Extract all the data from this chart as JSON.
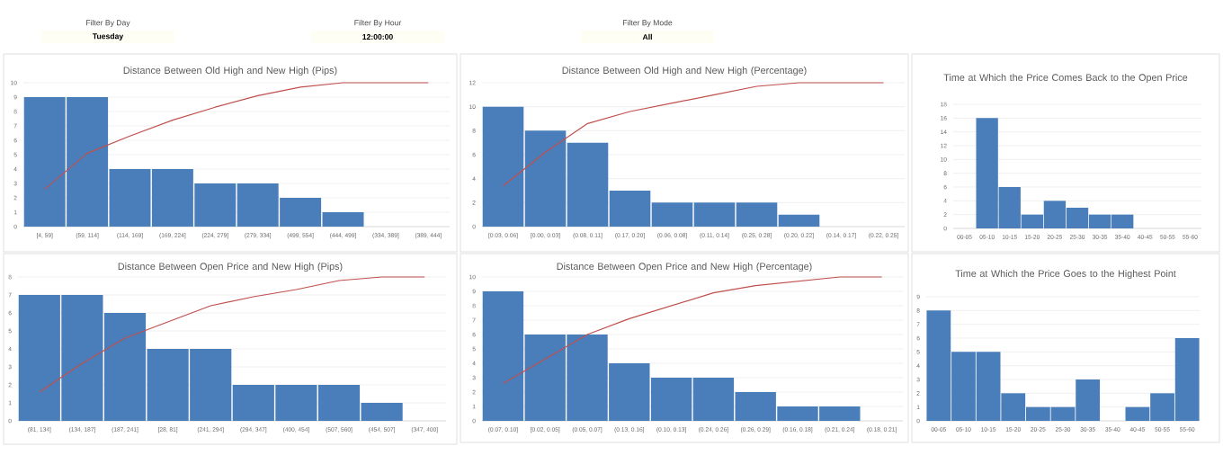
{
  "chart_data": [
    {
      "type": "other",
      "annotations": [
        "Filter By Day",
        "Tuesday",
        "Filter By Hour",
        "12:00:00",
        "Filter By Mode",
        "All"
      ]
    },
    {
      "type": "bar",
      "title": "Distance Between Old High and New High (Pips)",
      "categories": [
        "[4, 59]",
        "(59, 114]",
        "(114, 169]",
        "(169, 224]",
        "(224, 279]",
        "(279, 334]",
        "(499, 554]",
        "(444, 499]",
        "(334, 389]",
        "(389, 444]"
      ],
      "ylim": [
        0,
        10
      ],
      "yticks": [
        0,
        1,
        2,
        3,
        4,
        5,
        6,
        7,
        8,
        9,
        10
      ],
      "grid": "y",
      "series": [
        {
          "type": "bar",
          "color": "#4a7ebb",
          "values": [
            9,
            9,
            4,
            4,
            3,
            3,
            2,
            1,
            0,
            0
          ]
        },
        {
          "type": "line",
          "color": "#c0504d",
          "values": [
            2.6,
            5.1,
            6.3,
            7.4,
            8.3,
            9.1,
            9.7,
            10,
            10,
            10
          ]
        }
      ]
    },
    {
      "type": "bar",
      "title": "Distance Between Old High and New High (Percentage)",
      "categories": [
        "[0.03, 0.06]",
        "[0.00, 0.03]",
        "(0.08, 0.11]",
        "(0.17, 0.20]",
        "(0.06, 0.08]",
        "(0.11, 0.14]",
        "(0.25, 0.28]",
        "(0.20, 0.22]",
        "(0.14, 0.17]",
        "(0.22, 0.25]"
      ],
      "ylim": [
        0,
        12
      ],
      "yticks": [
        0,
        2,
        4,
        6,
        8,
        10,
        12
      ],
      "grid": "y",
      "series": [
        {
          "type": "bar",
          "color": "#4a7ebb",
          "values": [
            10,
            8,
            7,
            3,
            2,
            2,
            2,
            1,
            0,
            0
          ]
        },
        {
          "type": "line",
          "color": "#c0504d",
          "values": [
            3.4,
            6.2,
            8.6,
            9.6,
            10.3,
            11,
            11.7,
            12,
            12,
            12
          ]
        }
      ]
    },
    {
      "type": "bar",
      "title": "Time at Which the Price Comes Back to the Open Price",
      "categories": [
        "00-05",
        "05-10",
        "10-15",
        "15-20",
        "20-25",
        "25-30",
        "30-35",
        "35-40",
        "40-45",
        "50-55",
        "55-60"
      ],
      "ylim": [
        0,
        18
      ],
      "yticks": [
        0,
        2,
        4,
        6,
        8,
        10,
        12,
        14,
        16,
        18
      ],
      "grid": "y",
      "series": [
        {
          "type": "bar",
          "color": "#4a7ebb",
          "values": [
            0,
            16,
            6,
            2,
            4,
            3,
            2,
            2,
            0,
            0,
            0
          ]
        }
      ]
    },
    {
      "type": "bar",
      "title": "Distance Between Open Price and New High (Pips)",
      "categories": [
        "(81, 134]",
        "(134, 187]",
        "(187, 241]",
        "[28, 81]",
        "(241, 294]",
        "(294, 347]",
        "(400, 454]",
        "(507, 560]",
        "(454, 507]",
        "(347, 400]"
      ],
      "ylim": [
        0,
        8
      ],
      "yticks": [
        0,
        1,
        2,
        3,
        4,
        5,
        6,
        7,
        8
      ],
      "grid": "y",
      "series": [
        {
          "type": "bar",
          "color": "#4a7ebb",
          "values": [
            7,
            7,
            6,
            4,
            4,
            2,
            2,
            2,
            1,
            0
          ]
        },
        {
          "type": "line",
          "color": "#c0504d",
          "values": [
            1.6,
            3.2,
            4.6,
            5.5,
            6.4,
            6.9,
            7.3,
            7.8,
            8,
            8
          ]
        }
      ]
    },
    {
      "type": "bar",
      "title": "Distance Between Open Price and New High (Percentage)",
      "categories": [
        "(0.07, 0.10]",
        "[0.02, 0.05]",
        "(0.05, 0.07]",
        "(0.13, 0.16]",
        "(0.10, 0.13]",
        "(0.24, 0.26]",
        "(0.26, 0.29]",
        "(0.16, 0.18]",
        "(0.21, 0.24]",
        "(0.18, 0.21]"
      ],
      "ylim": [
        0,
        10
      ],
      "yticks": [
        0,
        1,
        2,
        3,
        4,
        5,
        6,
        7,
        8,
        9,
        10
      ],
      "grid": "y",
      "series": [
        {
          "type": "bar",
          "color": "#4a7ebb",
          "values": [
            9,
            6,
            6,
            4,
            3,
            3,
            2,
            1,
            1,
            0
          ]
        },
        {
          "type": "line",
          "color": "#c0504d",
          "values": [
            2.6,
            4.3,
            6,
            7.1,
            8,
            8.9,
            9.4,
            9.7,
            10,
            10
          ]
        }
      ]
    },
    {
      "type": "bar",
      "title": "Time at Which the Price Goes to the Highest Point",
      "categories": [
        "00-05",
        "05-10",
        "10-15",
        "15-20",
        "20-25",
        "25-30",
        "30-35",
        "35-40",
        "40-45",
        "50-55",
        "55-60"
      ],
      "ylim": [
        0,
        9
      ],
      "yticks": [
        0,
        1,
        2,
        3,
        4,
        5,
        6,
        7,
        8,
        9
      ],
      "grid": "y",
      "series": [
        {
          "type": "bar",
          "color": "#4a7ebb",
          "values": [
            8,
            5,
            5,
            2,
            1,
            1,
            3,
            0,
            1,
            2,
            6
          ]
        }
      ]
    }
  ]
}
